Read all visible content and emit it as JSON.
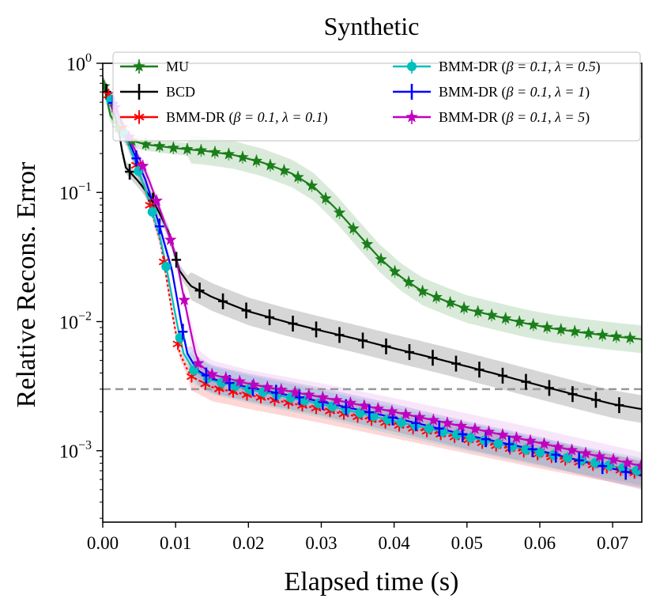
{
  "chart_data": {
    "type": "line",
    "title": "Synthetic",
    "xlabel": "Elapsed time (s)",
    "ylabel": "Relative Recons. Error",
    "xlim": [
      0.0,
      0.074
    ],
    "ylim": [
      0.00028,
      1.0
    ],
    "yscale": "log",
    "xticks": [
      0.0,
      0.01,
      0.02,
      0.03,
      0.04,
      0.05,
      0.06,
      0.07
    ],
    "xtick_labels": [
      "0.00",
      "0.01",
      "0.02",
      "0.03",
      "0.04",
      "0.05",
      "0.06",
      "0.07"
    ],
    "yticks": [
      {
        "value": 1.0,
        "base": "10",
        "exp": "0"
      },
      {
        "value": 0.1,
        "base": "10",
        "exp": "−1"
      },
      {
        "value": 0.01,
        "base": "10",
        "exp": "−2"
      },
      {
        "value": 0.001,
        "base": "10",
        "exp": "−3"
      }
    ],
    "reference_line": {
      "y": 0.003,
      "style": "dashed",
      "color": "#999999"
    },
    "legend_position": "top",
    "series": [
      {
        "name": "MU",
        "legend_label": "MU",
        "color": "#1a7f1a",
        "band_color": "#1a7f1a",
        "marker": "star",
        "x": [
          0.0,
          0.001,
          0.003,
          0.006,
          0.01,
          0.014,
          0.018,
          0.022,
          0.026,
          0.029,
          0.032,
          0.035,
          0.038,
          0.041,
          0.044,
          0.047,
          0.05,
          0.054,
          0.058,
          0.062,
          0.066,
          0.07,
          0.074
        ],
        "y": [
          0.75,
          0.4,
          0.26,
          0.235,
          0.22,
          0.21,
          0.195,
          0.17,
          0.14,
          0.11,
          0.075,
          0.048,
          0.031,
          0.022,
          0.017,
          0.0145,
          0.0125,
          0.011,
          0.0097,
          0.0088,
          0.0082,
          0.0077,
          0.0073
        ]
      },
      {
        "name": "BCD",
        "legend_label": "BCD",
        "color": "#000000",
        "band_color": "#000000",
        "marker": "plus",
        "x": [
          0.0,
          0.002,
          0.003,
          0.005,
          0.007,
          0.009,
          0.0105,
          0.012,
          0.015,
          0.02,
          0.025,
          0.03,
          0.035,
          0.04,
          0.045,
          0.05,
          0.055,
          0.06,
          0.065,
          0.07,
          0.074
        ],
        "y": [
          0.72,
          0.35,
          0.16,
          0.12,
          0.085,
          0.05,
          0.025,
          0.019,
          0.0155,
          0.012,
          0.01,
          0.0085,
          0.0073,
          0.0062,
          0.0053,
          0.0045,
          0.0038,
          0.0032,
          0.0027,
          0.0023,
          0.0021
        ]
      },
      {
        "name": "BMM-DR (β = 0.1, λ = 0.1)",
        "legend_prefix": "BMM-DR (",
        "legend_math": "β = 0.1, λ = 0.1",
        "legend_suffix": ")",
        "color": "#ff0000",
        "band_color": "#ff0000",
        "marker": "asterisk",
        "x": [
          0.0,
          0.002,
          0.004,
          0.006,
          0.008,
          0.0095,
          0.0105,
          0.012,
          0.015,
          0.02,
          0.03,
          0.04,
          0.05,
          0.06,
          0.074
        ],
        "y": [
          0.72,
          0.4,
          0.2,
          0.1,
          0.04,
          0.012,
          0.0058,
          0.0038,
          0.0031,
          0.0027,
          0.0021,
          0.0016,
          0.00122,
          0.00093,
          0.00066
        ]
      },
      {
        "name": "BMM-DR (β = 0.1, λ = 0.5)",
        "legend_prefix": "BMM-DR (",
        "legend_math": "β = 0.1, λ = 0.5",
        "legend_suffix": ")",
        "color": "#00bfbf",
        "band_color": "#00bfbf",
        "marker": "circle",
        "x": [
          0.0,
          0.002,
          0.004,
          0.006,
          0.008,
          0.009,
          0.01,
          0.011,
          0.0125,
          0.015,
          0.02,
          0.03,
          0.04,
          0.05,
          0.06,
          0.074
        ],
        "y": [
          0.72,
          0.4,
          0.2,
          0.1,
          0.042,
          0.022,
          0.011,
          0.0058,
          0.0042,
          0.0035,
          0.003,
          0.0023,
          0.0017,
          0.00128,
          0.00097,
          0.00069
        ]
      },
      {
        "name": "BMM-DR (β = 0.1, λ = 1)",
        "legend_prefix": "BMM-DR (",
        "legend_math": "β = 0.1, λ = 1",
        "legend_suffix": ")",
        "color": "#0000ff",
        "band_color": "#3a3aaa",
        "marker": "plus",
        "x": [
          0.0,
          0.002,
          0.004,
          0.006,
          0.008,
          0.0095,
          0.0105,
          0.0115,
          0.013,
          0.015,
          0.02,
          0.03,
          0.04,
          0.05,
          0.06,
          0.074
        ],
        "y": [
          0.72,
          0.42,
          0.22,
          0.12,
          0.05,
          0.025,
          0.012,
          0.0058,
          0.0042,
          0.0036,
          0.0031,
          0.0024,
          0.0018,
          0.00132,
          0.001,
          0.00064
        ]
      },
      {
        "name": "BMM-DR (β = 0.1, λ = 5)",
        "legend_prefix": "BMM-DR (",
        "legend_math": "β = 0.1, λ = 5",
        "legend_suffix": ")",
        "color": "#bf00bf",
        "band_color": "#cc66dd",
        "marker": "star",
        "x": [
          0.0,
          0.002,
          0.004,
          0.006,
          0.008,
          0.01,
          0.0115,
          0.013,
          0.015,
          0.02,
          0.03,
          0.04,
          0.05,
          0.06,
          0.074
        ],
        "y": [
          0.72,
          0.42,
          0.24,
          0.14,
          0.07,
          0.033,
          0.012,
          0.0048,
          0.0039,
          0.0033,
          0.0026,
          0.002,
          0.00152,
          0.00115,
          0.00076
        ]
      }
    ]
  }
}
